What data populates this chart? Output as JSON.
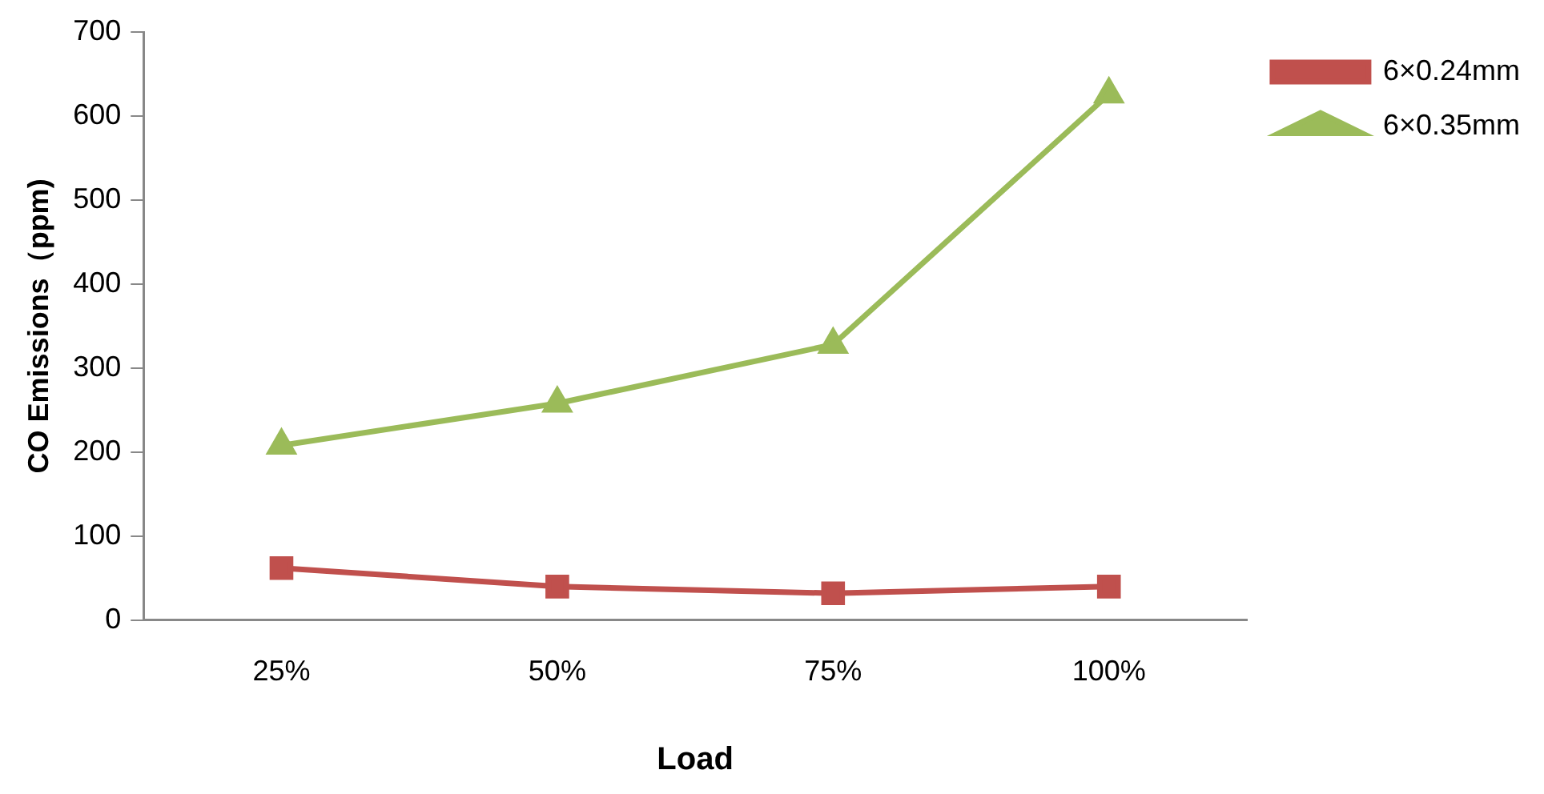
{
  "chart_data": {
    "type": "line",
    "xlabel": "Load",
    "ylabel": "CO Emissions（ppm)",
    "categories": [
      "25%",
      "50%",
      "75%",
      "100%"
    ],
    "series": [
      {
        "name": "6×0.24mm",
        "color": "#c0504d",
        "marker": "square",
        "values": [
          62,
          40,
          32,
          40
        ]
      },
      {
        "name": "6×0.35mm",
        "color": "#9bbb59",
        "marker": "triangle",
        "values": [
          208,
          258,
          328,
          626
        ]
      }
    ],
    "ylim": [
      0,
      700
    ],
    "yticks": [
      0,
      100,
      200,
      300,
      400,
      500,
      600,
      700
    ],
    "grid": false,
    "legend": "top right",
    "line_style": "solid"
  }
}
